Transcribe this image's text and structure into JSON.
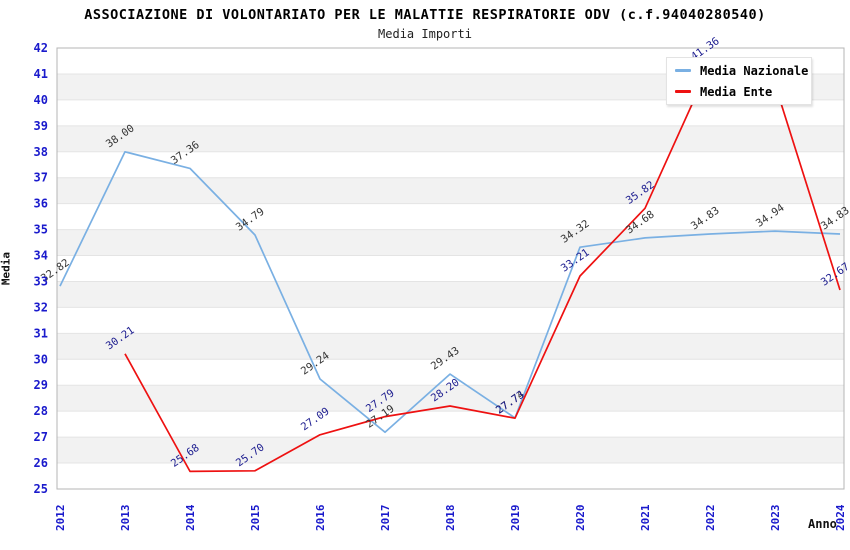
{
  "title": "ASSOCIAZIONE DI VOLONTARIATO PER LE MALATTIE RESPIRATORIE ODV (c.f.94040280540)",
  "subtitle": "Media Importi",
  "chart_data": {
    "type": "line",
    "x": [
      2012,
      2013,
      2014,
      2015,
      2016,
      2017,
      2018,
      2019,
      2020,
      2021,
      2022,
      2023,
      2024
    ],
    "xlabel": "Anno",
    "ylabel": "Media",
    "ylim": [
      25,
      42
    ],
    "y_tick_step": 1,
    "grid": "horizontal gridlines with alternating shaded bands",
    "legend_position": "top-right",
    "axis_tick_color": "#1a1acc",
    "band_color": "#f2f2f2",
    "gridline_color": "#e4e4e4",
    "plot_border_color": "#b5b5b5",
    "series": [
      {
        "name": "Media Nazionale",
        "color": "#7ab0e3",
        "label_color": "#333333",
        "points": [
          {
            "x": 2012,
            "v": 32.82,
            "label": "32.82"
          },
          {
            "x": 2013,
            "v": 38.0,
            "label": "38.00"
          },
          {
            "x": 2014,
            "v": 37.36,
            "label": "37.36"
          },
          {
            "x": 2015,
            "v": 34.79,
            "label": "34.79"
          },
          {
            "x": 2016,
            "v": 29.24,
            "label": "29.24"
          },
          {
            "x": 2017,
            "v": 27.19,
            "label": "27.19"
          },
          {
            "x": 2018,
            "v": 29.43,
            "label": "29.43"
          },
          {
            "x": 2019,
            "v": 27.74,
            "label": "27.74"
          },
          {
            "x": 2020,
            "v": 34.32,
            "label": "34.32"
          },
          {
            "x": 2021,
            "v": 34.68,
            "label": "34.68"
          },
          {
            "x": 2022,
            "v": 34.83,
            "label": "34.83"
          },
          {
            "x": 2023,
            "v": 34.94,
            "label": "34.94"
          },
          {
            "x": 2024,
            "v": 34.83,
            "label": "34.83"
          }
        ]
      },
      {
        "name": "Media Ente",
        "color": "#ee1111",
        "label_color": "#1c1c8f",
        "points": [
          {
            "x": 2013,
            "v": 30.21,
            "label": "30.21"
          },
          {
            "x": 2014,
            "v": 25.68,
            "label": "25.68"
          },
          {
            "x": 2015,
            "v": 25.7,
            "label": "25.70"
          },
          {
            "x": 2016,
            "v": 27.09,
            "label": "27.09"
          },
          {
            "x": 2017,
            "v": 27.79,
            "label": "27.79"
          },
          {
            "x": 2018,
            "v": 28.2,
            "label": "28.20"
          },
          {
            "x": 2019,
            "v": 27.73,
            "label": "27.73"
          },
          {
            "x": 2020,
            "v": 33.21,
            "label": "33.21"
          },
          {
            "x": 2021,
            "v": 35.82,
            "label": "35.82"
          },
          {
            "x": 2022,
            "v": 41.36,
            "label": "41.36"
          },
          {
            "x": 2023,
            "v": 40.6,
            "label": null
          },
          {
            "x": 2024,
            "v": 32.67,
            "label": "32.67"
          }
        ]
      }
    ]
  }
}
